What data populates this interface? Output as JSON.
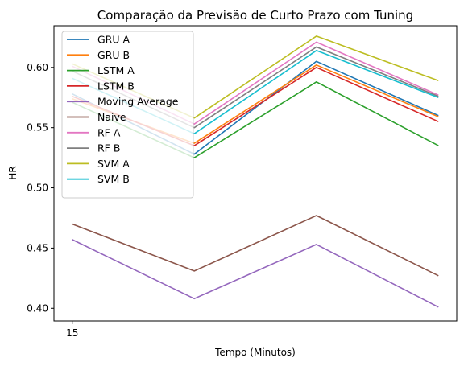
{
  "chart_data": {
    "type": "line",
    "title": "Comparação da Previsão de Curto Prazo com Tuning",
    "xlabel": "Tempo (Minutos)",
    "ylabel": "HR",
    "x": [
      15,
      30,
      45,
      60
    ],
    "xticks": [
      "15"
    ],
    "xlim": [
      12.75,
      62.25
    ],
    "ylim": [
      0.3895,
      0.6346
    ],
    "yticks": [
      0.4,
      0.45,
      0.5,
      0.55,
      0.6
    ],
    "ytick_labels": [
      "0.40",
      "0.45",
      "0.50",
      "0.55",
      "0.60"
    ],
    "grid": false,
    "legend_position": "upper-left",
    "series": [
      {
        "name": "GRU A",
        "color": "#1f77b4",
        "values": [
          0.578,
          0.528,
          0.605,
          0.56
        ]
      },
      {
        "name": "GRU B",
        "color": "#ff7f0e",
        "values": [
          0.574,
          0.537,
          0.602,
          0.559
        ]
      },
      {
        "name": "LSTM A",
        "color": "#2ca02c",
        "values": [
          0.571,
          0.525,
          0.588,
          0.535
        ]
      },
      {
        "name": "LSTM B",
        "color": "#d62728",
        "values": [
          0.576,
          0.535,
          0.6,
          0.555
        ]
      },
      {
        "name": "Moving Average",
        "color": "#9467bd",
        "values": [
          0.457,
          0.408,
          0.453,
          0.401
        ]
      },
      {
        "name": "Naive",
        "color": "#8c564b",
        "values": [
          0.47,
          0.431,
          0.477,
          0.427
        ]
      },
      {
        "name": "RF A",
        "color": "#e377c2",
        "values": [
          0.601,
          0.553,
          0.621,
          0.577
        ]
      },
      {
        "name": "RF B",
        "color": "#7f7f7f",
        "values": [
          0.597,
          0.55,
          0.617,
          0.576
        ]
      },
      {
        "name": "SVM A",
        "color": "#bcbd22",
        "values": [
          0.603,
          0.558,
          0.626,
          0.589
        ]
      },
      {
        "name": "SVM B",
        "color": "#17becf",
        "values": [
          0.591,
          0.545,
          0.614,
          0.575
        ]
      }
    ]
  }
}
